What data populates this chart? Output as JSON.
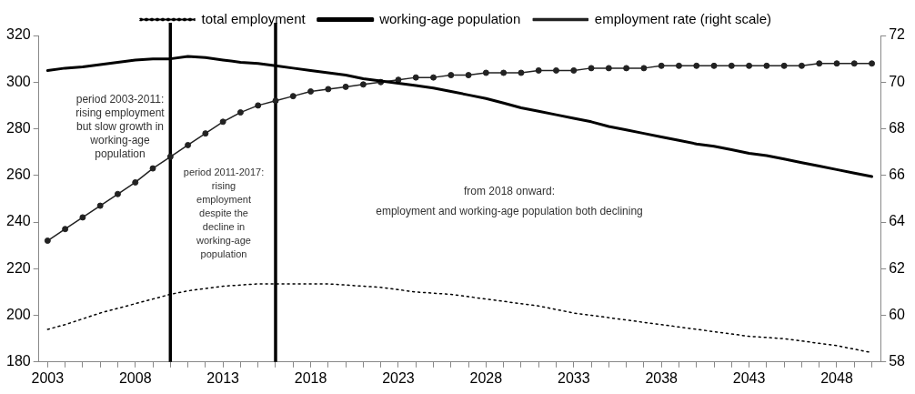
{
  "chart_data": {
    "type": "line",
    "x": [
      2003,
      2004,
      2005,
      2006,
      2007,
      2008,
      2009,
      2010,
      2011,
      2012,
      2013,
      2014,
      2015,
      2016,
      2017,
      2018,
      2019,
      2020,
      2021,
      2022,
      2023,
      2024,
      2025,
      2026,
      2027,
      2028,
      2029,
      2030,
      2031,
      2032,
      2033,
      2034,
      2035,
      2036,
      2037,
      2038,
      2039,
      2040,
      2041,
      2042,
      2043,
      2044,
      2045,
      2046,
      2047,
      2048,
      2049,
      2050
    ],
    "series": [
      {
        "name": "total employment",
        "color": "#000000",
        "line_style": "dotted",
        "marker": "none",
        "values": [
          194,
          196,
          198.5,
          201,
          203,
          205,
          207,
          209,
          210.5,
          211.5,
          212.5,
          213,
          213.5,
          213.5,
          213.5,
          213.5,
          213.5,
          213,
          212.5,
          212,
          211,
          210,
          209.5,
          209,
          208,
          207,
          206,
          205,
          204,
          202.5,
          201,
          200,
          199,
          198,
          197,
          196,
          195,
          194,
          193,
          192,
          191,
          190.5,
          190,
          189,
          188,
          187,
          185.5,
          184
        ]
      },
      {
        "name": "working-age population",
        "color": "#000000",
        "line_style": "solid",
        "marker": "none",
        "values": [
          305,
          306,
          306.5,
          307.5,
          308.5,
          309.5,
          310,
          310,
          311,
          310.5,
          309.5,
          308.5,
          308,
          307,
          306,
          305,
          304,
          303,
          301.5,
          300.5,
          299.5,
          298.5,
          297.5,
          296,
          294.5,
          293,
          291,
          289,
          287.5,
          286,
          284.5,
          283,
          281,
          279.5,
          278,
          276.5,
          275,
          273.5,
          272.5,
          271,
          269.5,
          268.5,
          267,
          265.5,
          264,
          262.5,
          261,
          259.5
        ]
      },
      {
        "name": "employment rate (right scale)",
        "color": "#222222",
        "axis": "y2",
        "line_style": "solid",
        "marker": "circle",
        "values": [
          63.2,
          63.7,
          64.2,
          64.7,
          65.2,
          65.7,
          66.3,
          66.8,
          67.3,
          67.8,
          68.3,
          68.7,
          69,
          69.2,
          69.4,
          69.6,
          69.7,
          69.8,
          69.9,
          70,
          70.1,
          70.2,
          70.2,
          70.3,
          70.3,
          70.4,
          70.4,
          70.4,
          70.5,
          70.5,
          70.5,
          70.6,
          70.6,
          70.6,
          70.6,
          70.7,
          70.7,
          70.7,
          70.7,
          70.7,
          70.7,
          70.7,
          70.7,
          70.7,
          70.8,
          70.8,
          70.8,
          70.8
        ]
      }
    ],
    "xlim": [
      2002.5,
      2050.5
    ],
    "xticks": [
      2003,
      {
        "value": 2004,
        "label": null
      },
      {
        "value": 2005,
        "label": null
      },
      {
        "value": 2006,
        "label": null
      },
      {
        "value": 2007,
        "label": null
      },
      2008,
      {
        "value": 2009,
        "label": null
      },
      {
        "value": 2010,
        "label": null
      },
      {
        "value": 2011,
        "label": null
      },
      {
        "value": 2012,
        "label": null
      },
      2013,
      {
        "value": 2014,
        "label": null
      },
      {
        "value": 2015,
        "label": null
      },
      {
        "value": 2016,
        "label": null
      },
      {
        "value": 2017,
        "label": null
      },
      2018,
      {
        "value": 2019,
        "label": null
      },
      {
        "value": 2020,
        "label": null
      },
      {
        "value": 2021,
        "label": null
      },
      {
        "value": 2022,
        "label": null
      },
      2023,
      {
        "value": 2024,
        "label": null
      },
      {
        "value": 2025,
        "label": null
      },
      {
        "value": 2026,
        "label": null
      },
      {
        "value": 2027,
        "label": null
      },
      2028,
      {
        "value": 2029,
        "label": null
      },
      {
        "value": 2030,
        "label": null
      },
      {
        "value": 2031,
        "label": null
      },
      {
        "value": 2032,
        "label": null
      },
      2033,
      {
        "value": 2034,
        "label": null
      },
      {
        "value": 2035,
        "label": null
      },
      {
        "value": 2036,
        "label": null
      },
      {
        "value": 2037,
        "label": null
      },
      2038,
      {
        "value": 2039,
        "label": null
      },
      {
        "value": 2040,
        "label": null
      },
      {
        "value": 2041,
        "label": null
      },
      {
        "value": 2042,
        "label": null
      },
      2043,
      {
        "value": 2044,
        "label": null
      },
      {
        "value": 2045,
        "label": null
      },
      {
        "value": 2046,
        "label": null
      },
      {
        "value": 2047,
        "label": null
      },
      2048,
      {
        "value": 2049,
        "label": null
      },
      {
        "value": 2050,
        "label": null
      }
    ],
    "ylim": [
      180,
      320
    ],
    "yticks": [
      180,
      200,
      220,
      240,
      260,
      280,
      300,
      320
    ],
    "y2lim": [
      58,
      72
    ],
    "y2ticks": [
      58,
      60,
      62,
      64,
      66,
      68,
      70,
      72
    ],
    "ref_lines": [
      {
        "axis": "x",
        "value": 2010,
        "color": "#000000"
      },
      {
        "axis": "x",
        "value": 2016,
        "color": "#000000"
      }
    ],
    "annotations": [
      "period 2003-2011:\nrising employment\nbut slow growth in\nworking-age\npopulation",
      "period 2011-2017:\nrising\nemployment\ndespite the\ndecline in\nworking-age\npopulation",
      "from 2018 onward:\nemployment and working-age population both declining"
    ],
    "legend": "top",
    "grid": false
  }
}
